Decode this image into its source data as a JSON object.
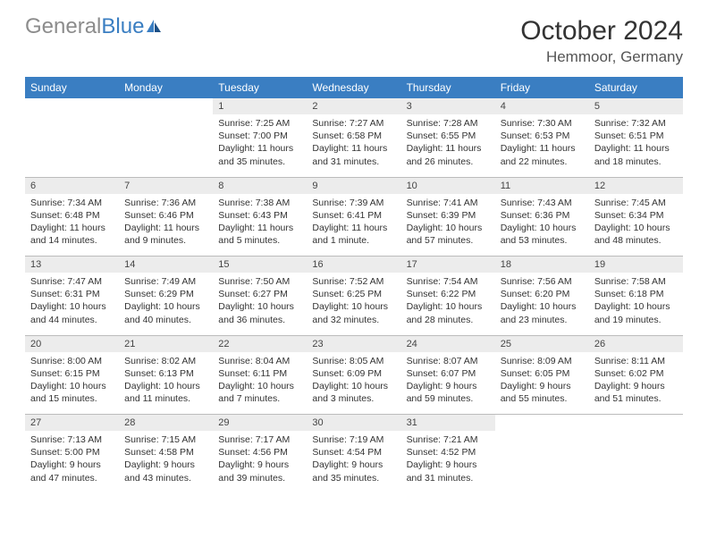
{
  "logo": {
    "part1": "General",
    "part2": "Blue"
  },
  "title": "October 2024",
  "subtitle": "Hemmoor, Germany",
  "colors": {
    "header_bg": "#3a7ec2",
    "header_text": "#ffffff",
    "daynum_bg": "#ececec",
    "text": "#333333",
    "logo_grey": "#8c8c8c",
    "logo_blue": "#3a7ec2"
  },
  "day_names": [
    "Sunday",
    "Monday",
    "Tuesday",
    "Wednesday",
    "Thursday",
    "Friday",
    "Saturday"
  ],
  "weeks": [
    [
      null,
      null,
      {
        "n": "1",
        "sunrise": "7:25 AM",
        "sunset": "7:00 PM",
        "day": "11 hours and 35 minutes."
      },
      {
        "n": "2",
        "sunrise": "7:27 AM",
        "sunset": "6:58 PM",
        "day": "11 hours and 31 minutes."
      },
      {
        "n": "3",
        "sunrise": "7:28 AM",
        "sunset": "6:55 PM",
        "day": "11 hours and 26 minutes."
      },
      {
        "n": "4",
        "sunrise": "7:30 AM",
        "sunset": "6:53 PM",
        "day": "11 hours and 22 minutes."
      },
      {
        "n": "5",
        "sunrise": "7:32 AM",
        "sunset": "6:51 PM",
        "day": "11 hours and 18 minutes."
      }
    ],
    [
      {
        "n": "6",
        "sunrise": "7:34 AM",
        "sunset": "6:48 PM",
        "day": "11 hours and 14 minutes."
      },
      {
        "n": "7",
        "sunrise": "7:36 AM",
        "sunset": "6:46 PM",
        "day": "11 hours and 9 minutes."
      },
      {
        "n": "8",
        "sunrise": "7:38 AM",
        "sunset": "6:43 PM",
        "day": "11 hours and 5 minutes."
      },
      {
        "n": "9",
        "sunrise": "7:39 AM",
        "sunset": "6:41 PM",
        "day": "11 hours and 1 minute."
      },
      {
        "n": "10",
        "sunrise": "7:41 AM",
        "sunset": "6:39 PM",
        "day": "10 hours and 57 minutes."
      },
      {
        "n": "11",
        "sunrise": "7:43 AM",
        "sunset": "6:36 PM",
        "day": "10 hours and 53 minutes."
      },
      {
        "n": "12",
        "sunrise": "7:45 AM",
        "sunset": "6:34 PM",
        "day": "10 hours and 48 minutes."
      }
    ],
    [
      {
        "n": "13",
        "sunrise": "7:47 AM",
        "sunset": "6:31 PM",
        "day": "10 hours and 44 minutes."
      },
      {
        "n": "14",
        "sunrise": "7:49 AM",
        "sunset": "6:29 PM",
        "day": "10 hours and 40 minutes."
      },
      {
        "n": "15",
        "sunrise": "7:50 AM",
        "sunset": "6:27 PM",
        "day": "10 hours and 36 minutes."
      },
      {
        "n": "16",
        "sunrise": "7:52 AM",
        "sunset": "6:25 PM",
        "day": "10 hours and 32 minutes."
      },
      {
        "n": "17",
        "sunrise": "7:54 AM",
        "sunset": "6:22 PM",
        "day": "10 hours and 28 minutes."
      },
      {
        "n": "18",
        "sunrise": "7:56 AM",
        "sunset": "6:20 PM",
        "day": "10 hours and 23 minutes."
      },
      {
        "n": "19",
        "sunrise": "7:58 AM",
        "sunset": "6:18 PM",
        "day": "10 hours and 19 minutes."
      }
    ],
    [
      {
        "n": "20",
        "sunrise": "8:00 AM",
        "sunset": "6:15 PM",
        "day": "10 hours and 15 minutes."
      },
      {
        "n": "21",
        "sunrise": "8:02 AM",
        "sunset": "6:13 PM",
        "day": "10 hours and 11 minutes."
      },
      {
        "n": "22",
        "sunrise": "8:04 AM",
        "sunset": "6:11 PM",
        "day": "10 hours and 7 minutes."
      },
      {
        "n": "23",
        "sunrise": "8:05 AM",
        "sunset": "6:09 PM",
        "day": "10 hours and 3 minutes."
      },
      {
        "n": "24",
        "sunrise": "8:07 AM",
        "sunset": "6:07 PM",
        "day": "9 hours and 59 minutes."
      },
      {
        "n": "25",
        "sunrise": "8:09 AM",
        "sunset": "6:05 PM",
        "day": "9 hours and 55 minutes."
      },
      {
        "n": "26",
        "sunrise": "8:11 AM",
        "sunset": "6:02 PM",
        "day": "9 hours and 51 minutes."
      }
    ],
    [
      {
        "n": "27",
        "sunrise": "7:13 AM",
        "sunset": "5:00 PM",
        "day": "9 hours and 47 minutes."
      },
      {
        "n": "28",
        "sunrise": "7:15 AM",
        "sunset": "4:58 PM",
        "day": "9 hours and 43 minutes."
      },
      {
        "n": "29",
        "sunrise": "7:17 AM",
        "sunset": "4:56 PM",
        "day": "9 hours and 39 minutes."
      },
      {
        "n": "30",
        "sunrise": "7:19 AM",
        "sunset": "4:54 PM",
        "day": "9 hours and 35 minutes."
      },
      {
        "n": "31",
        "sunrise": "7:21 AM",
        "sunset": "4:52 PM",
        "day": "9 hours and 31 minutes."
      },
      null,
      null
    ]
  ]
}
